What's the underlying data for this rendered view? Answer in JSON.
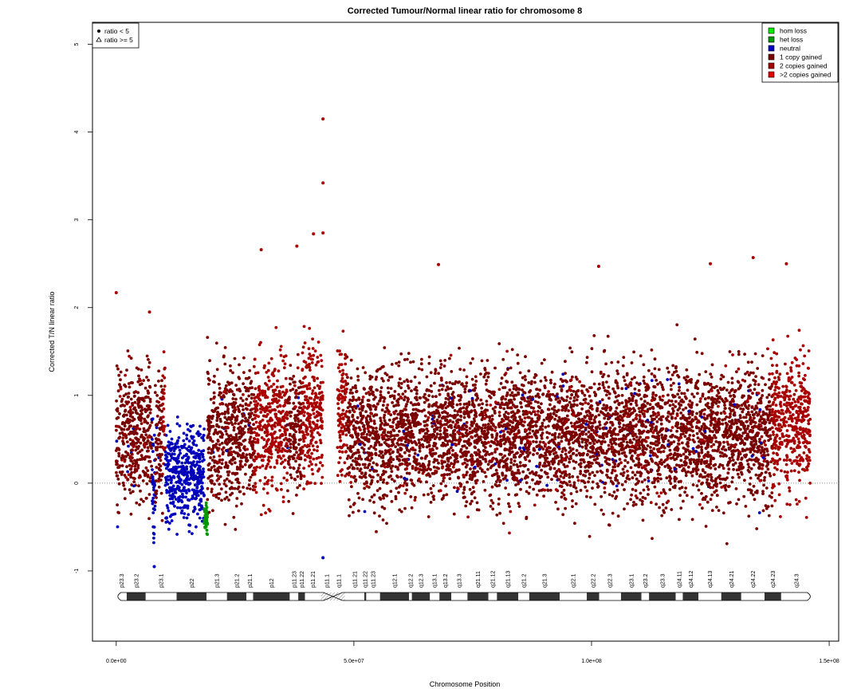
{
  "chart_data": {
    "type": "scatter",
    "title": "Corrected Tumour/Normal linear ratio for chromosome  8",
    "xlabel": "Chromosome Position",
    "ylabel": "Corrected T/N linear ratio",
    "xlim": [
      -5000000,
      152000000
    ],
    "ylim": [
      -1.8,
      5.25
    ],
    "x_ticks": [
      {
        "value": 0,
        "label": "0.0e+00"
      },
      {
        "value": 50000000,
        "label": "5.0e+07"
      },
      {
        "value": 100000000,
        "label": "1.0e+08"
      },
      {
        "value": 150000000,
        "label": "1.5e+08"
      }
    ],
    "y_ticks": [
      -1,
      0,
      1,
      2,
      3,
      4,
      5
    ],
    "reference_line": 0,
    "shape_legend": {
      "placement": "top-left",
      "items": [
        {
          "symbol": "dot",
          "label": "ratio < 5"
        },
        {
          "symbol": "triangle",
          "label": "ratio >= 5"
        }
      ]
    },
    "color_legend": {
      "placement": "top-right",
      "items": [
        {
          "label": "hom loss",
          "color": "#00ee00"
        },
        {
          "label": "het loss",
          "color": "#009900"
        },
        {
          "label": "neutral",
          "color": "#0000bb"
        },
        {
          "label": "1 copy gained",
          "color": "#7a0000"
        },
        {
          "label": "2 copies gained",
          "color": "#a80000"
        },
        {
          "label": ">2 copies gained",
          "color": "#e00000"
        }
      ]
    },
    "segments": [
      {
        "start": 0,
        "end": 7500000,
        "state": "1 copy gained",
        "mean": 0.55
      },
      {
        "start": 7500000,
        "end": 8200000,
        "state": "neutral",
        "mean": 0.0
      },
      {
        "start": 8200000,
        "end": 9800000,
        "state": "1 copy gained",
        "mean": 0.5
      },
      {
        "start": 9800000,
        "end": 10300000,
        "state": "2 copies gained",
        "mean": 0.8
      },
      {
        "start": 10300000,
        "end": 18500000,
        "state": "neutral",
        "mean": 0.1
      },
      {
        "start": 18500000,
        "end": 19200000,
        "state": "het loss",
        "mean": -0.4
      },
      {
        "start": 19200000,
        "end": 29000000,
        "state": "1 copy gained",
        "mean": 0.55
      },
      {
        "start": 29000000,
        "end": 36000000,
        "state": "2 copies gained",
        "mean": 0.7
      },
      {
        "start": 36000000,
        "end": 39000000,
        "state": "1 copy gained",
        "mean": 0.6
      },
      {
        "start": 39000000,
        "end": 43500000,
        "state": "2 copies gained",
        "mean": 0.8
      },
      {
        "start": 46500000,
        "end": 48500000,
        "state": "2 copies gained",
        "mean": 0.8
      },
      {
        "start": 48500000,
        "end": 138000000,
        "state": "1 copy gained",
        "mean": 0.55
      },
      {
        "start": 138000000,
        "end": 146000000,
        "state": "2 copies gained",
        "mean": 0.7
      }
    ],
    "outliers": [
      {
        "x": 43500000,
        "y": 4.15
      },
      {
        "x": 43500000,
        "y": 3.42
      },
      {
        "x": 41500000,
        "y": 2.84
      },
      {
        "x": 43500000,
        "y": 2.85
      },
      {
        "x": 38000000,
        "y": 2.7
      },
      {
        "x": 30500000,
        "y": 2.66
      },
      {
        "x": 67800000,
        "y": 2.49
      },
      {
        "x": 134000000,
        "y": 2.57
      },
      {
        "x": 125000000,
        "y": 2.5
      },
      {
        "x": 141000000,
        "y": 2.5
      },
      {
        "x": 101500000,
        "y": 2.47
      },
      {
        "x": 0,
        "y": 2.17
      },
      {
        "x": 7000000,
        "y": 1.95
      },
      {
        "x": 43500000,
        "y": -0.85
      },
      {
        "x": 8000000,
        "y": -0.95
      }
    ],
    "ideogram": {
      "length": 146364022,
      "centromere": [
        43600000,
        47600000
      ],
      "bands": [
        {
          "name": "p23.3",
          "start": 0,
          "end": 2200000,
          "stain": "gneg"
        },
        {
          "name": "p23.2",
          "start": 2200000,
          "end": 6200000,
          "stain": "gpos"
        },
        {
          "name": "p23.1",
          "start": 6200000,
          "end": 12700000,
          "stain": "gneg"
        },
        {
          "name": "p22",
          "start": 12700000,
          "end": 19000000,
          "stain": "gpos"
        },
        {
          "name": "p21.3",
          "start": 19000000,
          "end": 23300000,
          "stain": "gneg"
        },
        {
          "name": "p21.2",
          "start": 23300000,
          "end": 27400000,
          "stain": "gpos"
        },
        {
          "name": "p21.1",
          "start": 27400000,
          "end": 28800000,
          "stain": "gneg"
        },
        {
          "name": "p12",
          "start": 28800000,
          "end": 36500000,
          "stain": "gpos"
        },
        {
          "name": "p11.23",
          "start": 36500000,
          "end": 38300000,
          "stain": "gneg"
        },
        {
          "name": "p11.22",
          "start": 38300000,
          "end": 39700000,
          "stain": "gpos"
        },
        {
          "name": "p11.21",
          "start": 39700000,
          "end": 43100000,
          "stain": "gneg"
        },
        {
          "name": "p11.1",
          "start": 43100000,
          "end": 45600000,
          "stain": "acen"
        },
        {
          "name": "q11.1",
          "start": 45600000,
          "end": 48100000,
          "stain": "acen"
        },
        {
          "name": "q11.21",
          "start": 48100000,
          "end": 52200000,
          "stain": "gneg"
        },
        {
          "name": "q11.22",
          "start": 52200000,
          "end": 52600000,
          "stain": "gpos"
        },
        {
          "name": "q11.23",
          "start": 52600000,
          "end": 55500000,
          "stain": "gneg"
        },
        {
          "name": "q12.1",
          "start": 55500000,
          "end": 61600000,
          "stain": "gpos"
        },
        {
          "name": "q12.2",
          "start": 61600000,
          "end": 62200000,
          "stain": "gneg"
        },
        {
          "name": "q12.3",
          "start": 62200000,
          "end": 66000000,
          "stain": "gpos"
        },
        {
          "name": "q13.1",
          "start": 66000000,
          "end": 68000000,
          "stain": "gneg"
        },
        {
          "name": "q13.2",
          "start": 68000000,
          "end": 70500000,
          "stain": "gpos"
        },
        {
          "name": "q13.3",
          "start": 70500000,
          "end": 73900000,
          "stain": "gneg"
        },
        {
          "name": "q21.11",
          "start": 73900000,
          "end": 78300000,
          "stain": "gpos"
        },
        {
          "name": "q21.12",
          "start": 78300000,
          "end": 80100000,
          "stain": "gneg"
        },
        {
          "name": "q21.13",
          "start": 80100000,
          "end": 84600000,
          "stain": "gpos"
        },
        {
          "name": "q21.2",
          "start": 84600000,
          "end": 86900000,
          "stain": "gneg"
        },
        {
          "name": "q21.3",
          "start": 86900000,
          "end": 93300000,
          "stain": "gpos"
        },
        {
          "name": "q22.1",
          "start": 93300000,
          "end": 99000000,
          "stain": "gneg"
        },
        {
          "name": "q22.2",
          "start": 99000000,
          "end": 101600000,
          "stain": "gpos"
        },
        {
          "name": "q22.3",
          "start": 101600000,
          "end": 106200000,
          "stain": "gneg"
        },
        {
          "name": "q23.1",
          "start": 106200000,
          "end": 110500000,
          "stain": "gpos"
        },
        {
          "name": "q23.2",
          "start": 110500000,
          "end": 112100000,
          "stain": "gneg"
        },
        {
          "name": "q23.3",
          "start": 112100000,
          "end": 117700000,
          "stain": "gpos"
        },
        {
          "name": "q24.11",
          "start": 117700000,
          "end": 119200000,
          "stain": "gneg"
        },
        {
          "name": "q24.12",
          "start": 119200000,
          "end": 122500000,
          "stain": "gpos"
        },
        {
          "name": "q24.13",
          "start": 122500000,
          "end": 127300000,
          "stain": "gneg"
        },
        {
          "name": "q24.21",
          "start": 127300000,
          "end": 131500000,
          "stain": "gpos"
        },
        {
          "name": "q24.22",
          "start": 131500000,
          "end": 136400000,
          "stain": "gneg"
        },
        {
          "name": "q24.23",
          "start": 136400000,
          "end": 139900000,
          "stain": "gpos"
        },
        {
          "name": "q24.3",
          "start": 139900000,
          "end": 146364022,
          "stain": "gneg"
        }
      ]
    }
  }
}
